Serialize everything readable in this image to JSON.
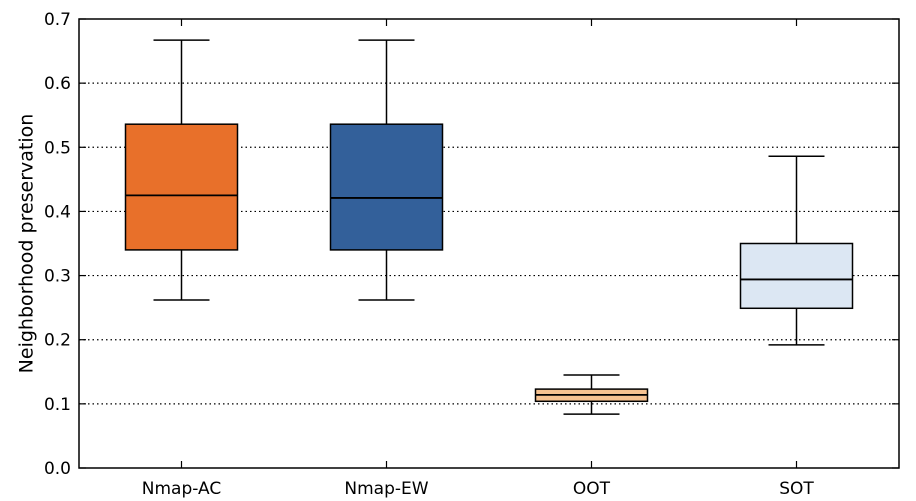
{
  "chart_data": {
    "type": "box",
    "title": "",
    "xlabel": "",
    "ylabel": "Neighborhood preservation",
    "ylim": [
      0.0,
      0.7
    ],
    "yticks": [
      "0.0",
      "0.1",
      "0.2",
      "0.3",
      "0.4",
      "0.5",
      "0.6",
      "0.7"
    ],
    "grid": "horizontal dotted",
    "categories": [
      "Nmap-AC",
      "Nmap-EW",
      "OOT",
      "SOT"
    ],
    "boxes": [
      {
        "category": "Nmap-AC",
        "whisker_low": 0.262,
        "q1": 0.34,
        "median": 0.425,
        "q3": 0.536,
        "whisker_high": 0.667,
        "color": "#e8702a"
      },
      {
        "category": "Nmap-EW",
        "whisker_low": 0.262,
        "q1": 0.34,
        "median": 0.421,
        "q3": 0.536,
        "whisker_high": 0.667,
        "color": "#33609a"
      },
      {
        "category": "OOT",
        "whisker_low": 0.084,
        "q1": 0.104,
        "median": 0.114,
        "q3": 0.123,
        "whisker_high": 0.145,
        "color": "#f6c291"
      },
      {
        "category": "SOT",
        "whisker_low": 0.192,
        "q1": 0.249,
        "median": 0.294,
        "q3": 0.35,
        "whisker_high": 0.486,
        "color": "#dce7f3"
      }
    ]
  }
}
